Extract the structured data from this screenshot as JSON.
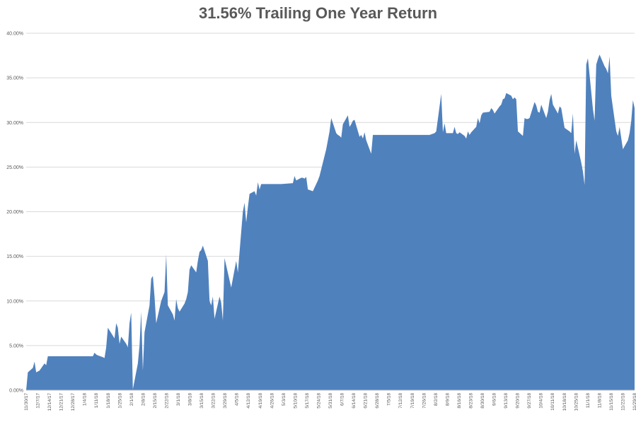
{
  "chart_data": {
    "type": "area",
    "title": "31.56% Trailing One Year Return",
    "xlabel": "",
    "ylabel": "",
    "ylim": [
      0,
      40
    ],
    "y_ticks": [
      "0.00%",
      "5.00%",
      "10.00%",
      "15.00%",
      "20.00%",
      "25.00%",
      "30.00%",
      "35.00%",
      "40.00%"
    ],
    "y_tick_values": [
      0,
      5,
      10,
      15,
      20,
      25,
      30,
      35,
      40
    ],
    "x_tick_labels": [
      "11/30/17",
      "12/7/17",
      "12/14/17",
      "12/21/17",
      "12/28/17",
      "1/4/18",
      "1/11/18",
      "1/18/18",
      "1/25/18",
      "2/1/18",
      "2/8/18",
      "2/15/18",
      "2/22/18",
      "3/1/18",
      "3/8/18",
      "3/15/18",
      "3/22/18",
      "3/29/18",
      "4/5/18",
      "4/12/18",
      "4/19/18",
      "4/26/18",
      "5/3/18",
      "5/10/18",
      "5/17/18",
      "5/24/18",
      "5/31/18",
      "6/7/18",
      "6/14/18",
      "6/21/18",
      "6/28/18",
      "7/5/18",
      "7/12/18",
      "7/19/18",
      "7/26/18",
      "8/2/18",
      "8/9/18",
      "8/16/18",
      "8/23/18",
      "8/30/18",
      "9/6/18",
      "9/13/18",
      "9/20/18",
      "9/27/18",
      "10/4/18",
      "10/11/18",
      "10/18/18",
      "10/25/18",
      "11/1/18",
      "11/8/18",
      "11/15/18",
      "11/22/18",
      "11/29/18"
    ],
    "grid": true,
    "legend": "none",
    "fill_color": "#4f81bd",
    "series": [
      {
        "x": [
          "11/30/17",
          "12/1/17",
          "12/4/17",
          "12/5/17",
          "12/6/17",
          "12/7/17",
          "12/8/17",
          "12/11/17",
          "12/12/17",
          "12/13/17",
          "12/14/17",
          "12/15/17",
          "12/28/17",
          "1/5/18",
          "1/8/18",
          "1/9/18",
          "1/10/18",
          "1/11/18",
          "1/12/18",
          "1/15/18",
          "1/16/18",
          "1/17/18",
          "1/18/18",
          "1/19/18",
          "1/22/18",
          "1/23/18",
          "1/24/18",
          "1/25/18",
          "1/26/18",
          "1/29/18",
          "1/30/18",
          "1/31/18",
          "2/1/18",
          "2/2/18",
          "2/5/18",
          "2/6/18",
          "2/7/18",
          "2/8/18",
          "2/9/18",
          "2/12/18",
          "2/13/18",
          "2/14/18",
          "2/15/18",
          "2/16/18",
          "2/19/18",
          "2/20/18",
          "2/21/18",
          "2/22/18",
          "2/23/18",
          "2/26/18",
          "2/27/18",
          "2/28/18",
          "3/1/18",
          "3/2/18",
          "3/5/18",
          "3/6/18",
          "3/7/18",
          "3/8/18",
          "3/9/18",
          "3/12/18",
          "3/13/18",
          "3/14/18",
          "3/15/18",
          "3/16/18",
          "3/19/18",
          "3/20/18",
          "3/21/18",
          "3/22/18",
          "3/23/18",
          "3/26/18",
          "3/27/18",
          "3/28/18",
          "3/29/18",
          "4/2/18",
          "4/3/18",
          "4/4/18",
          "4/5/18",
          "4/6/18",
          "4/9/18",
          "4/10/18",
          "4/11/18",
          "4/12/18",
          "4/13/18",
          "4/16/18",
          "4/17/18",
          "4/18/18",
          "4/19/18",
          "4/20/18",
          "4/23/18",
          "4/24/18",
          "4/25/18",
          "4/26/18",
          "4/27/18",
          "5/2/18",
          "5/9/18",
          "5/10/18",
          "5/11/18",
          "5/14/18",
          "5/15/18",
          "5/16/18",
          "5/17/18",
          "5/18/18",
          "5/21/18",
          "5/22/18",
          "5/23/18",
          "5/24/18",
          "5/25/18",
          "5/29/18",
          "5/30/18",
          "5/31/18",
          "6/1/18",
          "6/4/18",
          "6/5/18",
          "6/6/18",
          "6/7/18",
          "6/8/18",
          "6/11/18",
          "6/12/18",
          "6/13/18",
          "6/14/18",
          "6/15/18",
          "6/18/18",
          "6/19/18",
          "6/20/18",
          "6/21/18",
          "6/22/18",
          "6/25/18",
          "6/26/18",
          "6/27/18",
          "6/28/18",
          "6/29/18",
          "7/2/18",
          "7/16/18",
          "7/30/18",
          "8/2/18",
          "8/3/18",
          "8/6/18",
          "8/7/18",
          "8/8/18",
          "8/9/18",
          "8/10/18",
          "8/13/18",
          "8/14/18",
          "8/15/18",
          "8/16/18",
          "8/17/18",
          "8/20/18",
          "8/21/18",
          "8/22/18",
          "8/23/18",
          "8/24/18",
          "8/27/18",
          "8/28/18",
          "8/29/18",
          "8/30/18",
          "8/31/18",
          "9/4/18",
          "9/5/18",
          "9/6/18",
          "9/7/18",
          "9/10/18",
          "9/11/18",
          "9/12/18",
          "9/13/18",
          "9/14/18",
          "9/17/18",
          "9/18/18",
          "9/19/18",
          "9/20/18",
          "9/21/18",
          "9/24/18",
          "9/25/18",
          "9/26/18",
          "9/27/18",
          "9/28/18",
          "10/1/18",
          "10/2/18",
          "10/3/18",
          "10/4/18",
          "10/5/18",
          "10/8/18",
          "10/9/18",
          "10/10/18",
          "10/11/18",
          "10/12/18",
          "10/15/18",
          "10/16/18",
          "10/17/18",
          "10/18/18",
          "10/19/18",
          "10/22/18",
          "10/23/18",
          "10/24/18",
          "10/25/18",
          "10/26/18",
          "10/29/18",
          "10/30/18",
          "10/31/18",
          "11/1/18",
          "11/2/18",
          "11/5/18",
          "11/6/18",
          "11/7/18",
          "11/8/18",
          "11/9/18",
          "11/12/18",
          "11/13/18",
          "11/14/18",
          "11/15/18",
          "11/16/18",
          "11/19/18",
          "11/20/18",
          "11/21/18",
          "11/23/18",
          "11/26/18",
          "11/27/18",
          "11/28/18",
          "11/29/18",
          "11/30/18"
        ],
        "values": [
          0,
          2.0,
          2.5,
          3.2,
          2.0,
          2.1,
          2.2,
          3.0,
          2.8,
          3.8,
          3.8,
          3.8,
          3.8,
          3.8,
          3.8,
          3.8,
          4.2,
          4.0,
          3.9,
          3.7,
          3.6,
          4.8,
          7.0,
          6.7,
          5.8,
          7.5,
          7.0,
          5.2,
          6.0,
          5.2,
          4.8,
          7.5,
          8.7,
          0.1,
          3.0,
          5.0,
          8.8,
          2.2,
          6.5,
          9.5,
          12.5,
          12.8,
          10.5,
          7.5,
          10.0,
          10.5,
          11.0,
          15.2,
          9.5,
          8.5,
          7.8,
          10.2,
          9.2,
          8.8,
          9.7,
          10.2,
          11.0,
          13.5,
          14.0,
          13.2,
          14.5,
          15.5,
          15.7,
          16.2,
          14.5,
          10.0,
          9.5,
          10.5,
          8.0,
          10.5,
          9.8,
          7.8,
          14.8,
          11.5,
          12.5,
          13.5,
          14.5,
          13.2,
          20.0,
          21.0,
          18.8,
          20.5,
          22.0,
          22.3,
          21.8,
          23.3,
          22.5,
          23.1,
          23.1,
          23.1,
          23.1,
          23.1,
          23.1,
          23.1,
          23.2,
          24.0,
          23.5,
          23.8,
          23.8,
          23.7,
          23.9,
          22.5,
          22.3,
          22.7,
          23.1,
          23.5,
          24.0,
          27.0,
          28.0,
          29.0,
          30.5,
          28.8,
          28.6,
          28.5,
          28.3,
          29.8,
          30.8,
          29.5,
          29.8,
          30.2,
          30.3,
          28.4,
          28.6,
          28.2,
          28.9,
          28.0,
          26.5,
          28.6,
          28.6,
          28.6,
          28.6,
          28.6,
          28.6,
          28.6,
          28.8,
          29.0,
          33.2,
          28.9,
          29.9,
          28.8,
          28.8,
          28.8,
          29.5,
          28.8,
          28.7,
          28.9,
          28.5,
          28.2,
          29.0,
          28.6,
          28.9,
          29.5,
          30.5,
          29.9,
          30.8,
          31.1,
          31.2,
          31.6,
          31.4,
          31.0,
          31.8,
          32.0,
          32.6,
          32.7,
          33.3,
          33.0,
          32.6,
          32.8,
          32.6,
          29.0,
          28.5,
          30.5,
          30.4,
          30.4,
          30.5,
          32.3,
          31.9,
          31.2,
          31.1,
          32.0,
          30.5,
          31.2,
          32.5,
          33.2,
          32.0,
          31.0,
          31.8,
          31.6,
          30.5,
          29.4,
          29.0,
          28.8,
          31.0,
          26.5,
          28.0,
          25.5,
          24.5,
          23.0,
          36.5,
          37.2,
          31.5,
          30.2,
          36.5,
          37.1,
          37.6,
          36.3,
          36.0,
          35.5,
          37.4,
          33.0,
          29.0,
          28.5,
          29.5,
          27.0,
          28.0,
          28.8,
          30.2,
          32.5,
          31.6
        ]
      }
    ]
  }
}
